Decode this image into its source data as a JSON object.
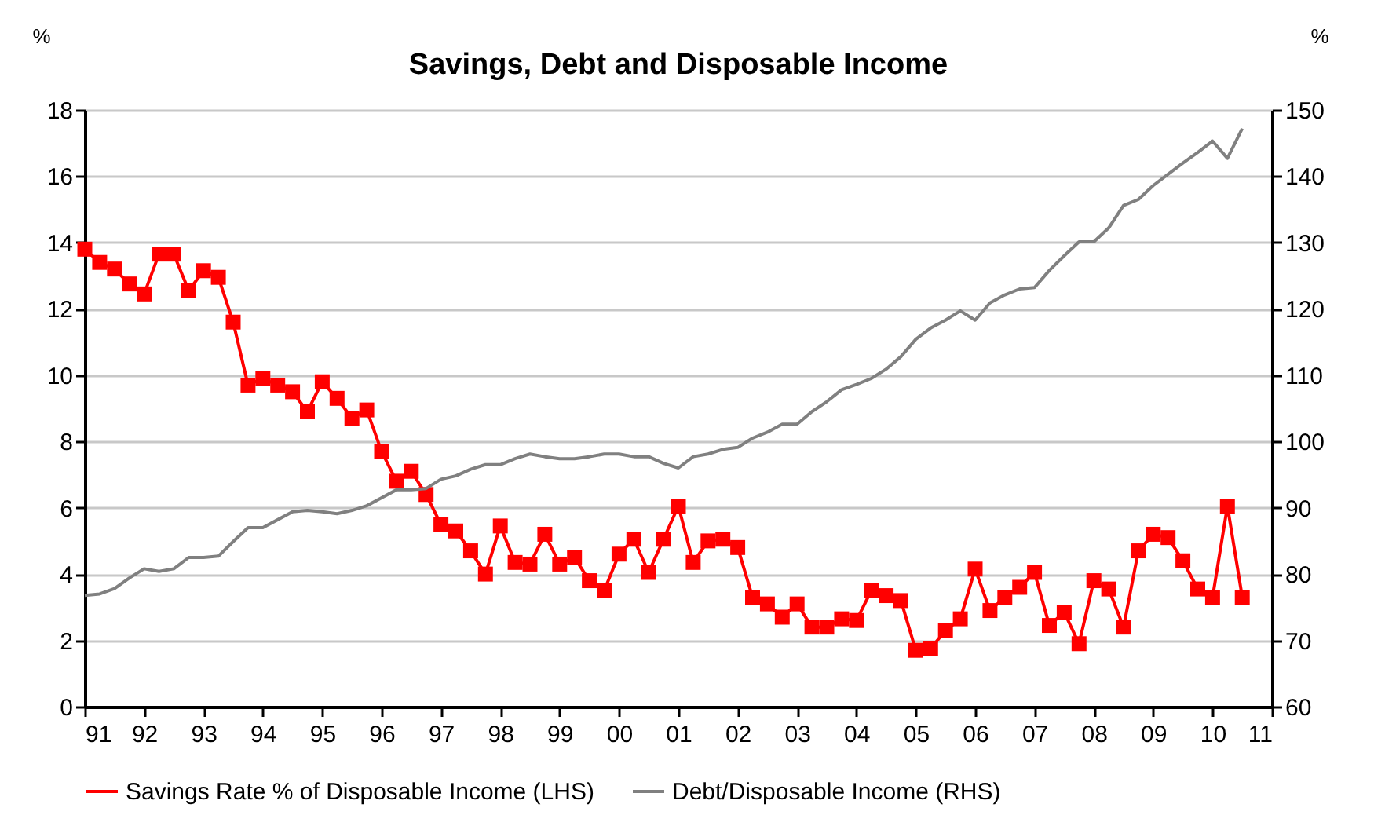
{
  "chart_data": {
    "type": "line",
    "title": "Savings, Debt and Disposable Income",
    "ylabel": "%",
    "y2label": "%",
    "x": [
      1991,
      1991.25,
      1991.5,
      1991.75,
      1992,
      1992.25,
      1992.5,
      1992.75,
      1993,
      1993.25,
      1993.5,
      1993.75,
      1994,
      1994.25,
      1994.5,
      1994.75,
      1995,
      1995.25,
      1995.5,
      1995.75,
      1996,
      1996.25,
      1996.5,
      1996.75,
      1997,
      1997.25,
      1997.5,
      1997.75,
      1998,
      1998.25,
      1998.5,
      1998.75,
      1999,
      1999.25,
      1999.5,
      1999.75,
      2000,
      2000.25,
      2000.5,
      2000.75,
      2001,
      2001.25,
      2001.5,
      2001.75,
      2002,
      2002.25,
      2002.5,
      2002.75,
      2003,
      2003.25,
      2003.5,
      2003.75,
      2004,
      2004.25,
      2004.5,
      2004.75,
      2005,
      2005.25,
      2005.5,
      2005.75,
      2006,
      2006.25,
      2006.5,
      2006.75,
      2007,
      2007.25,
      2007.5,
      2007.75,
      2008,
      2008.25,
      2008.5,
      2008.75,
      2009,
      2009.25,
      2009.5,
      2009.75,
      2010,
      2010.25,
      2010.5
    ],
    "series": [
      {
        "name": "Savings Rate % of Disposable Income (LHS)",
        "color": "#ff0000",
        "marker": "square",
        "axis": "y",
        "values": [
          13.8,
          13.4,
          13.2,
          12.75,
          12.45,
          13.65,
          13.65,
          12.55,
          13.15,
          12.95,
          11.6,
          9.7,
          9.9,
          9.7,
          9.5,
          8.9,
          9.8,
          9.3,
          8.7,
          8.95,
          7.7,
          6.8,
          7.1,
          6.4,
          5.5,
          5.3,
          4.7,
          4.0,
          5.45,
          4.35,
          4.3,
          5.2,
          4.3,
          4.5,
          3.8,
          3.5,
          4.6,
          5.05,
          4.05,
          5.05,
          6.05,
          4.35,
          5.0,
          5.05,
          4.8,
          3.3,
          3.1,
          2.7,
          3.1,
          2.4,
          2.4,
          2.65,
          2.6,
          3.5,
          3.35,
          3.2,
          1.7,
          1.75,
          2.3,
          2.65,
          4.15,
          2.9,
          3.3,
          3.6,
          4.05,
          2.45,
          2.85,
          1.9,
          3.8,
          3.55,
          2.4,
          4.7,
          5.2,
          5.1,
          4.4,
          3.55,
          3.3,
          6.05,
          3.3
        ]
      },
      {
        "name": "Debt/Disposable Income (RHS)",
        "color": "#808080",
        "marker": "none",
        "axis": "y2",
        "values": [
          76.8,
          77,
          77.8,
          79.4,
          80.8,
          80.4,
          80.8,
          82.5,
          82.5,
          82.7,
          84.9,
          87,
          87,
          88.2,
          89.4,
          89.6,
          89.4,
          89.1,
          89.6,
          90.3,
          91.5,
          92.7,
          92.7,
          92.9,
          94.3,
          94.8,
          95.8,
          96.5,
          96.5,
          97.4,
          98.1,
          97.7,
          97.4,
          97.4,
          97.7,
          98.1,
          98.1,
          97.7,
          97.7,
          96.7,
          96,
          97.7,
          98.1,
          98.8,
          99.1,
          100.5,
          101.4,
          102.6,
          102.6,
          104.5,
          106,
          107.8,
          108.6,
          109.5,
          110.9,
          112.8,
          115.4,
          117.1,
          118.3,
          119.7,
          118.3,
          120.9,
          122.1,
          123,
          123.2,
          125.8,
          128,
          130.1,
          130.1,
          132.2,
          135.6,
          136.5,
          138.6,
          140.3,
          142,
          143.6,
          145.3,
          142.7,
          147.2
        ]
      }
    ],
    "xlim": [
      1991,
      2011
    ],
    "xticks": [
      {
        "value": 1991,
        "label": "91"
      },
      {
        "value": 1992,
        "label": "92"
      },
      {
        "value": 1993,
        "label": "93"
      },
      {
        "value": 1994,
        "label": "94"
      },
      {
        "value": 1995,
        "label": "95"
      },
      {
        "value": 1996,
        "label": "96"
      },
      {
        "value": 1997,
        "label": "97"
      },
      {
        "value": 1998,
        "label": "98"
      },
      {
        "value": 1999,
        "label": "99"
      },
      {
        "value": 2000,
        "label": "00"
      },
      {
        "value": 2001,
        "label": "01"
      },
      {
        "value": 2002,
        "label": "02"
      },
      {
        "value": 2003,
        "label": "03"
      },
      {
        "value": 2004,
        "label": "04"
      },
      {
        "value": 2005,
        "label": "05"
      },
      {
        "value": 2006,
        "label": "06"
      },
      {
        "value": 2007,
        "label": "07"
      },
      {
        "value": 2008,
        "label": "08"
      },
      {
        "value": 2009,
        "label": "09"
      },
      {
        "value": 2010,
        "label": "10"
      },
      {
        "value": 2011,
        "label": "11"
      }
    ],
    "ylim": [
      0,
      18
    ],
    "yticks": [
      0,
      2,
      4,
      6,
      8,
      10,
      12,
      14,
      16,
      18
    ],
    "y2lim": [
      60,
      150
    ],
    "y2ticks": [
      60,
      70,
      80,
      90,
      100,
      110,
      120,
      130,
      140,
      150
    ],
    "grid": "y",
    "legend": "bottom",
    "line_style": "solid"
  }
}
